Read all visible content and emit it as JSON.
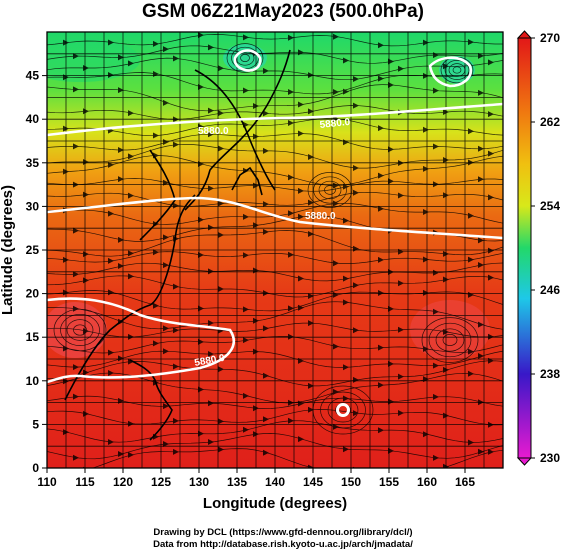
{
  "title": "GSM 06Z21May2023 (500.0hPa)",
  "x_axis": {
    "title": "Longitude (degrees)",
    "range": [
      110,
      170
    ],
    "ticks": [
      "110",
      "115",
      "120",
      "125",
      "130",
      "135",
      "140",
      "145",
      "150",
      "155",
      "160",
      "165"
    ]
  },
  "y_axis": {
    "title": "Latitude  (degrees)",
    "range": [
      0,
      50
    ],
    "ticks": [
      "0",
      "5",
      "10",
      "15",
      "20",
      "25",
      "30",
      "35",
      "40",
      "45"
    ]
  },
  "colorbar": {
    "range": [
      230,
      270
    ],
    "labels": [
      "270",
      "262",
      "254",
      "246",
      "238",
      "230"
    ],
    "colors": [
      "#e81ad0",
      "#3818c8",
      "#1ec8e8",
      "#22d86a",
      "#d8e81a",
      "#f07a10",
      "#e21818"
    ]
  },
  "contour_labels": [
    "5880.0",
    "5880.0",
    "5880.0",
    "5880.0"
  ],
  "credits": [
    "Drawing by DCL (https://www.gfd-dennou.org/library/dcl/)",
    "Data from http://database.rish.kyoto-u.ac.jp/arch/jmadata/"
  ]
}
